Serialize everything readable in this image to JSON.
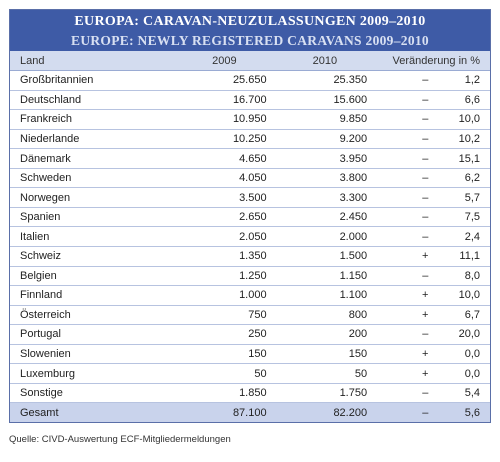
{
  "chart_data": {
    "type": "table",
    "title": "EUROPA: CARAVAN-NEUZULASSUNGEN 2009–2010",
    "subtitle": "EUROPE: NEWLY REGISTERED CARAVANS 2009–2010",
    "columns": [
      "Land",
      "2009",
      "2010",
      "Veränderung in %"
    ],
    "rows": [
      {
        "land": "Großbritannien",
        "y2009": "25.650",
        "y2010": "25.350",
        "sign": "–",
        "change": "1,2"
      },
      {
        "land": "Deutschland",
        "y2009": "16.700",
        "y2010": "15.600",
        "sign": "–",
        "change": "6,6"
      },
      {
        "land": "Frankreich",
        "y2009": "10.950",
        "y2010": "9.850",
        "sign": "–",
        "change": "10,0"
      },
      {
        "land": "Niederlande",
        "y2009": "10.250",
        "y2010": "9.200",
        "sign": "–",
        "change": "10,2"
      },
      {
        "land": "Dänemark",
        "y2009": "4.650",
        "y2010": "3.950",
        "sign": "–",
        "change": "15,1"
      },
      {
        "land": "Schweden",
        "y2009": "4.050",
        "y2010": "3.800",
        "sign": "–",
        "change": "6,2"
      },
      {
        "land": "Norwegen",
        "y2009": "3.500",
        "y2010": "3.300",
        "sign": "–",
        "change": "5,7"
      },
      {
        "land": "Spanien",
        "y2009": "2.650",
        "y2010": "2.450",
        "sign": "–",
        "change": "7,5"
      },
      {
        "land": "Italien",
        "y2009": "2.050",
        "y2010": "2.000",
        "sign": "–",
        "change": "2,4"
      },
      {
        "land": "Schweiz",
        "y2009": "1.350",
        "y2010": "1.500",
        "sign": "+",
        "change": "11,1"
      },
      {
        "land": "Belgien",
        "y2009": "1.250",
        "y2010": "1.150",
        "sign": "–",
        "change": "8,0"
      },
      {
        "land": "Finnland",
        "y2009": "1.000",
        "y2010": "1.100",
        "sign": "+",
        "change": "10,0"
      },
      {
        "land": "Österreich",
        "y2009": "750",
        "y2010": "800",
        "sign": "+",
        "change": "6,7"
      },
      {
        "land": "Portugal",
        "y2009": "250",
        "y2010": "200",
        "sign": "–",
        "change": "20,0"
      },
      {
        "land": "Slowenien",
        "y2009": "150",
        "y2010": "150",
        "sign": "+",
        "change": "0,0"
      },
      {
        "land": "Luxemburg",
        "y2009": "50",
        "y2010": "50",
        "sign": "+",
        "change": "0,0"
      },
      {
        "land": "Sonstige",
        "y2009": "1.850",
        "y2010": "1.750",
        "sign": "–",
        "change": "5,4"
      }
    ],
    "total": {
      "land": "Gesamt",
      "y2009": "87.100",
      "y2010": "82.200",
      "sign": "–",
      "change": "5,6"
    }
  },
  "source": "Quelle: CIVD-Auswertung ECF-Mitgliedermeldungen",
  "colors": {
    "title_bar": "#3e5ba6",
    "header_row": "#d3dcef",
    "total_row": "#c9d3ec",
    "row_line": "#b7c3e0"
  }
}
